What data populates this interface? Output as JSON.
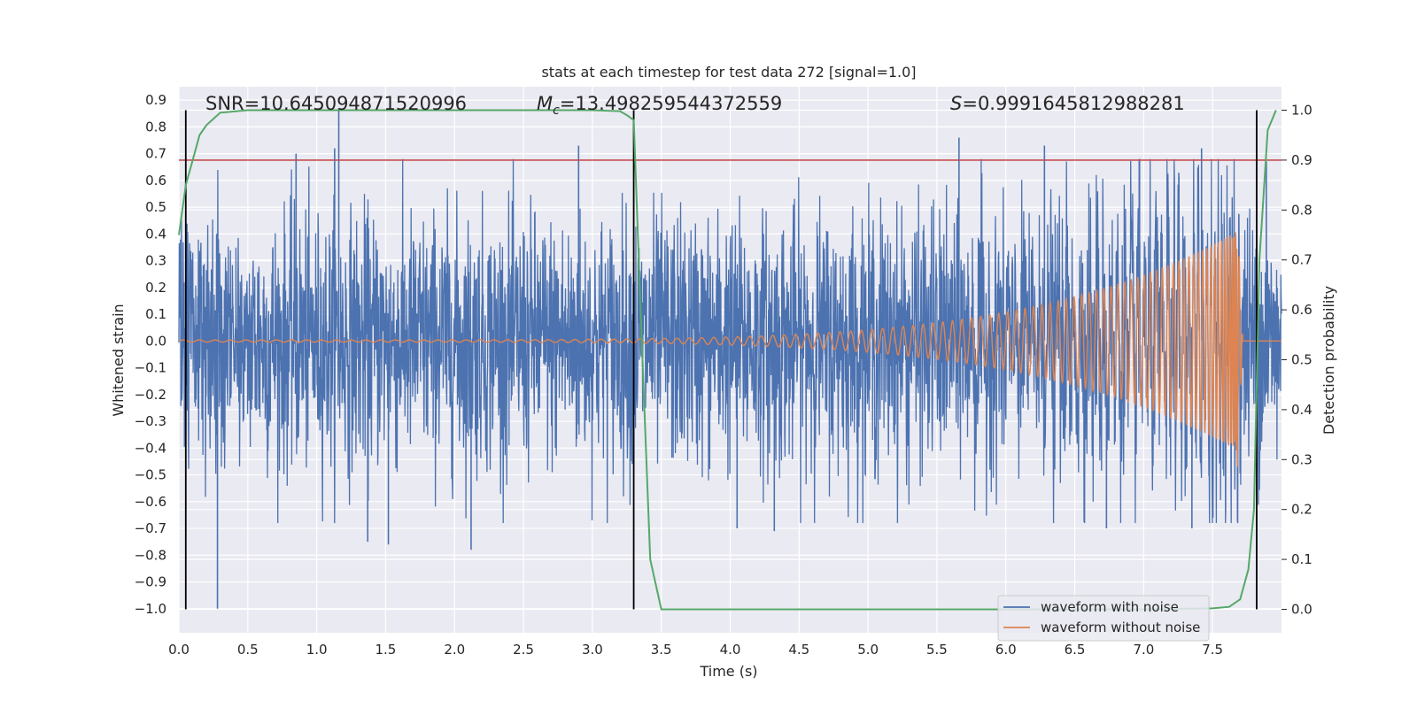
{
  "chart_data": {
    "type": "line",
    "title": "stats at each timestep for test data 272 [signal=1.0]",
    "xlabel": "Time (s)",
    "ylabel": "Whitened strain",
    "y2label": "Detection probability",
    "xlim": [
      0.0,
      8.0
    ],
    "ylim": [
      -1.09,
      0.95
    ],
    "y2lim": [
      -0.047,
      1.047
    ],
    "grid": true,
    "xticks": [
      "0.0",
      "0.5",
      "1.0",
      "1.5",
      "2.0",
      "2.5",
      "3.0",
      "3.5",
      "4.0",
      "4.5",
      "5.0",
      "5.5",
      "6.0",
      "6.5",
      "7.0",
      "7.5"
    ],
    "yticks": [
      "0.9",
      "0.8",
      "0.7",
      "0.6",
      "0.5",
      "0.4",
      "0.3",
      "0.2",
      "0.1",
      "0.0",
      "−0.1",
      "−0.2",
      "−0.3",
      "−0.4",
      "−0.5",
      "−0.6",
      "−0.7",
      "−0.8",
      "−0.9",
      "−1.0"
    ],
    "y2ticks": [
      "1.0",
      "0.9",
      "0.8",
      "0.7",
      "0.6",
      "0.5",
      "0.4",
      "0.3",
      "0.2",
      "0.1",
      "0.0"
    ],
    "annotations": {
      "snr": "SNR=10.645094871520996",
      "mc_symbol": "M",
      "mc_sub": "c",
      "mc_value": "=13.498259544372559",
      "s_symbol": "S",
      "s_value": "=0.9991645812988281"
    },
    "colors": {
      "noise": "#4c72b0",
      "clean": "#dd8452",
      "prob": "#55a868",
      "threshold": "#c44e52",
      "marker": "#000000",
      "background": "#eaeaf2",
      "grid": "#ffffff"
    },
    "threshold_probability": 0.9,
    "vertical_markers_s": [
      0.05,
      3.3,
      7.82
    ],
    "series": [
      {
        "name": "waveform with noise",
        "axis": "left",
        "description_stats": {
          "typical_amplitude": 0.3,
          "peak_max": 0.87,
          "peak_min": -1.0
        },
        "peaks": [
          {
            "t": 1.16,
            "y": 0.87
          },
          {
            "t": 0.85,
            "y": 0.7
          },
          {
            "t": 1.13,
            "y": 0.72
          },
          {
            "t": 2.9,
            "y": 0.73
          },
          {
            "t": 5.66,
            "y": 0.76
          },
          {
            "t": 6.28,
            "y": 0.73
          },
          {
            "t": 6.97,
            "y": 0.68
          },
          {
            "t": 7.42,
            "y": 0.72
          },
          {
            "t": 7.89,
            "y": 0.67
          },
          {
            "t": 0.28,
            "y": -1.0
          },
          {
            "t": 1.37,
            "y": -0.75
          },
          {
            "t": 1.52,
            "y": -0.76
          },
          {
            "t": 2.12,
            "y": -0.78
          },
          {
            "t": 4.05,
            "y": -0.7
          },
          {
            "t": 4.32,
            "y": -0.71
          },
          {
            "t": 6.73,
            "y": -0.7
          },
          {
            "t": 7.35,
            "y": -0.7
          }
        ]
      },
      {
        "name": "waveform without noise",
        "axis": "left",
        "chirp": {
          "amplitude_start": 0.004,
          "amplitude_end": 0.41,
          "merger_time": 7.68,
          "min_after_merger": -0.47
        }
      },
      {
        "name": "detection probability",
        "axis": "right",
        "t": [
          0.0,
          0.05,
          0.1,
          0.15,
          0.2,
          0.3,
          0.5,
          1.0,
          2.0,
          3.0,
          3.2,
          3.25,
          3.3,
          3.35,
          3.42,
          3.5,
          4.0,
          5.0,
          6.0,
          7.0,
          7.5,
          7.62,
          7.7,
          7.76,
          7.8,
          7.84,
          7.9,
          7.96
        ],
        "p": [
          0.75,
          0.85,
          0.9,
          0.95,
          0.97,
          0.995,
          1.0,
          1.0,
          1.0,
          1.0,
          0.998,
          0.99,
          0.98,
          0.6,
          0.1,
          0.0,
          0.0,
          0.0,
          0.0,
          0.0,
          0.002,
          0.005,
          0.02,
          0.08,
          0.2,
          0.7,
          0.96,
          1.0
        ]
      }
    ],
    "legend": {
      "position": "lower-right",
      "entries": [
        "waveform with noise",
        "waveform without noise"
      ]
    }
  }
}
